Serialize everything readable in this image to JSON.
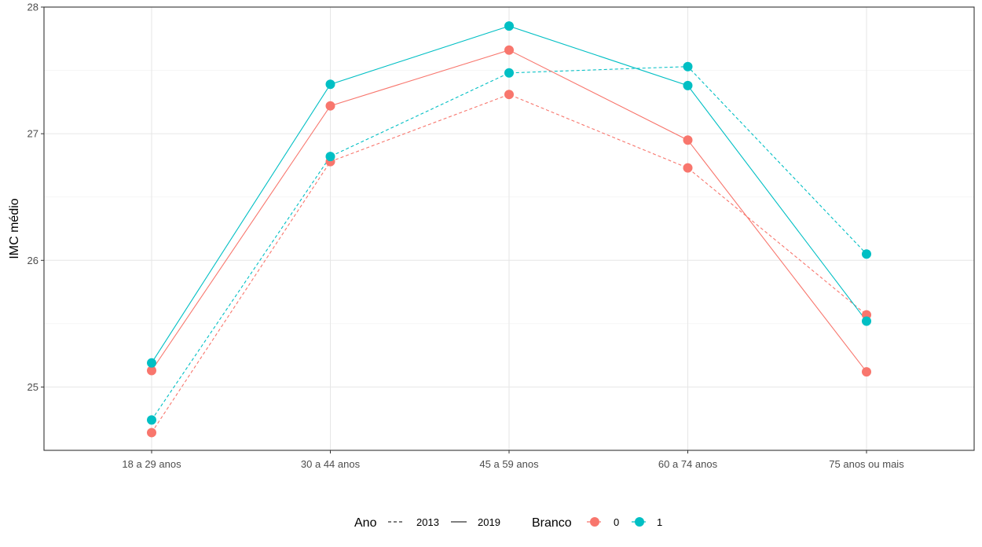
{
  "chart_data": {
    "type": "line",
    "categories": [
      "18 a 29 anos",
      "30 a 44 anos",
      "45 a 59 anos",
      "60 a 74 anos",
      "75 anos ou mais"
    ],
    "ylabel": "IMC médio",
    "xlabel": "",
    "ylim": [
      24.5,
      28.0
    ],
    "yticks": [
      25,
      26,
      27,
      28
    ],
    "grid": true,
    "legend_position": "bottom",
    "series": [
      {
        "ano": "2013",
        "branco": "0",
        "linetype": "dashed",
        "color": "#F8766D",
        "values": [
          24.64,
          26.78,
          27.31,
          26.73,
          25.57
        ]
      },
      {
        "ano": "2013",
        "branco": "1",
        "linetype": "dashed",
        "color": "#00BFC4",
        "values": [
          24.74,
          26.82,
          27.48,
          27.53,
          26.05
        ]
      },
      {
        "ano": "2019",
        "branco": "0",
        "linetype": "solid",
        "color": "#F8766D",
        "values": [
          25.13,
          27.22,
          27.66,
          26.95,
          25.12
        ]
      },
      {
        "ano": "2019",
        "branco": "1",
        "linetype": "solid",
        "color": "#00BFC4",
        "values": [
          25.19,
          27.39,
          27.85,
          27.38,
          25.52
        ]
      }
    ],
    "legend": {
      "ano": {
        "title": "Ano",
        "items": [
          {
            "label": "2013",
            "linetype": "dashed"
          },
          {
            "label": "2019",
            "linetype": "solid"
          }
        ]
      },
      "branco": {
        "title": "Branco",
        "items": [
          {
            "label": "0",
            "color": "#F8766D"
          },
          {
            "label": "1",
            "color": "#00BFC4"
          }
        ]
      }
    }
  }
}
